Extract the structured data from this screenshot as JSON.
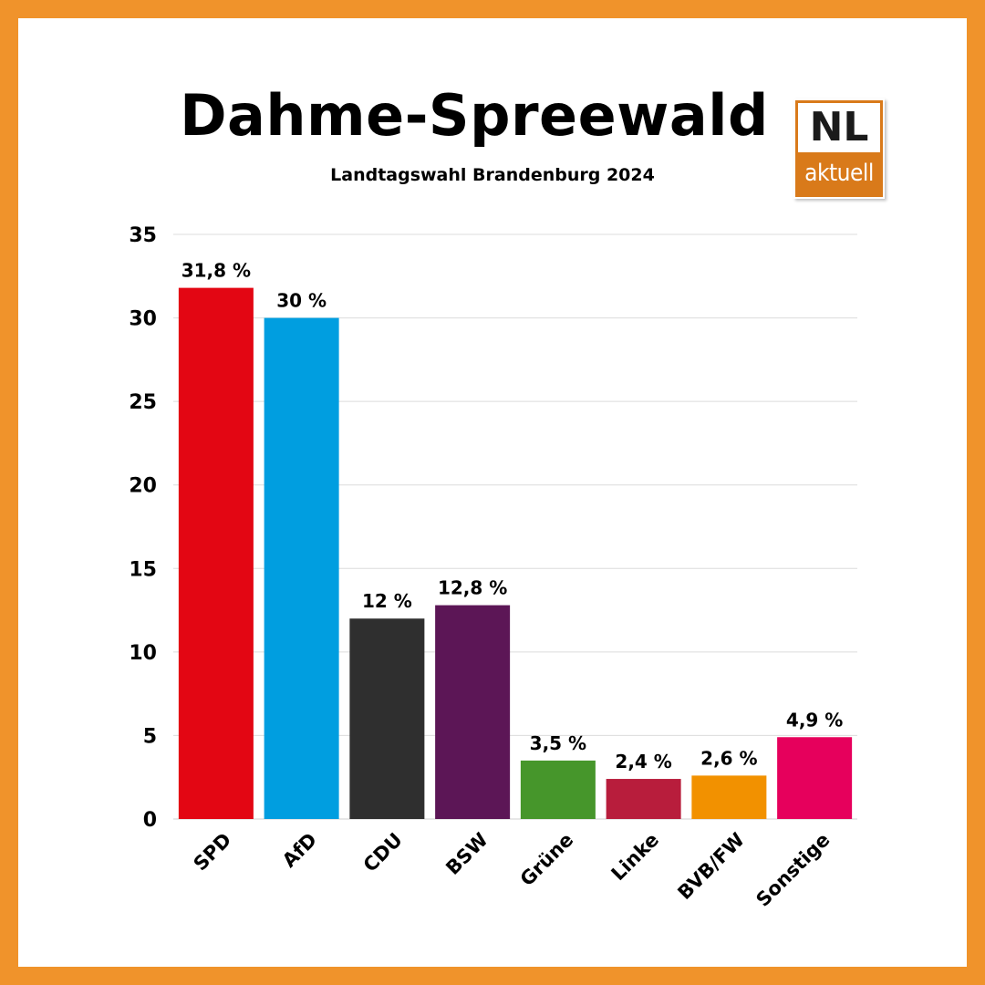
{
  "page": {
    "title": "Dahme-Spreewald",
    "subtitle": "Landtagswahl Brandenburg 2024",
    "logo_top": "NL",
    "logo_bottom": "aktuell",
    "border_color": "#f0932b"
  },
  "chart_data": {
    "type": "bar",
    "title": "Dahme-Spreewald",
    "subtitle": "Landtagswahl Brandenburg 2024",
    "xlabel": "",
    "ylabel": "",
    "ylim": [
      0,
      35
    ],
    "yticks": [
      0,
      5,
      10,
      15,
      20,
      25,
      30,
      35
    ],
    "grid": true,
    "categories": [
      "SPD",
      "AfD",
      "CDU",
      "BSW",
      "Grüne",
      "Linke",
      "BVB/FW",
      "Sonstige"
    ],
    "values": [
      31.8,
      30,
      12,
      12.8,
      3.5,
      2.4,
      2.6,
      4.9
    ],
    "data_labels": [
      "31,8 %",
      "30 %",
      "12 %",
      "12,8 %",
      "3,5 %",
      "2,4 %",
      "2,6 %",
      "4,9 %"
    ],
    "colors": [
      "#e30613",
      "#009ee0",
      "#2f2f2f",
      "#5c1656",
      "#46962b",
      "#b81d3c",
      "#f29100",
      "#e6005c"
    ]
  }
}
